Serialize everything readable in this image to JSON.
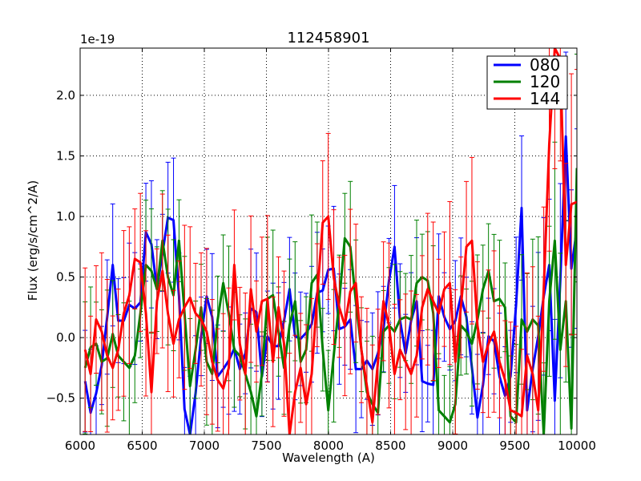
{
  "chart_data": {
    "type": "line",
    "title": "112458901",
    "xlabel": "Wavelength (A)",
    "ylabel": "Flux (erg/s/cm^2/A)",
    "offset_text": "1e-19",
    "xlim": [
      6000,
      10000
    ],
    "ylim": [
      -0.8,
      2.39
    ],
    "xticks": [
      6000,
      6500,
      7000,
      7500,
      8000,
      8500,
      9000,
      9500,
      10000
    ],
    "xtick_labels": [
      "6000",
      "6500",
      "7000",
      "7500",
      "8000",
      "8500",
      "9000",
      "9500",
      "10000"
    ],
    "yticks": [
      -0.5,
      0.0,
      0.5,
      1.0,
      1.5,
      2.0
    ],
    "ytick_labels": [
      "−0.5",
      "0.0",
      "0.5",
      "1.0",
      "1.5",
      "2.0"
    ],
    "grid": true,
    "legend_placement": "top-right",
    "x_range": [
      6040,
      10000
    ],
    "series": [
      {
        "name": "080",
        "color": "#0000ff",
        "yerr": 0.42,
        "values": [
          -0.36,
          -0.62,
          -0.46,
          -0.23,
          0.17,
          0.6,
          0.14,
          0.14,
          0.27,
          0.24,
          0.29,
          0.87,
          0.77,
          0.4,
          0.7,
          0.99,
          0.97,
          0.34,
          -0.59,
          -0.82,
          -0.46,
          0.01,
          0.34,
          0.17,
          -0.32,
          -0.26,
          -0.19,
          -0.09,
          -0.26,
          -0.13,
          0.24,
          0.21,
          -0.32,
          0.01,
          -0.07,
          -0.07,
          0.14,
          0.4,
          0.01,
          -0.01,
          0.04,
          0.11,
          0.37,
          0.39,
          0.56,
          0.57,
          0.07,
          0.09,
          0.15,
          -0.26,
          -0.26,
          -0.19,
          -0.26,
          -0.13,
          0.07,
          0.47,
          0.75,
          0.14,
          -0.13,
          0.14,
          0.3,
          -0.36,
          -0.38,
          -0.39,
          0.34,
          0.17,
          0.07,
          0.14,
          0.34,
          0.17,
          -0.25,
          -0.66,
          -0.39,
          0.01,
          -0.03,
          -0.32,
          -0.48,
          -0.32,
          0.27,
          1.07,
          -0.6,
          -0.26,
          0.01,
          0.34,
          0.6,
          -0.52,
          0.47,
          1.66,
          0.57,
          0.9
        ]
      },
      {
        "name": "120",
        "color": "#008000",
        "yerr": 0.45,
        "values": [
          -0.25,
          -0.08,
          -0.05,
          -0.2,
          -0.17,
          0.03,
          -0.15,
          -0.2,
          -0.25,
          -0.15,
          0.2,
          0.6,
          0.55,
          0.4,
          0.8,
          0.5,
          0.35,
          0.8,
          0.2,
          -0.4,
          -0.1,
          0.25,
          -0.2,
          -0.3,
          0.15,
          0.45,
          0.2,
          -0.1,
          -0.15,
          -0.3,
          -0.45,
          -0.65,
          -0.3,
          0.32,
          0.35,
          0.05,
          -0.25,
          0.1,
          0.3,
          -0.2,
          -0.1,
          0.45,
          0.52,
          -0.1,
          -0.6,
          -0.15,
          0.3,
          0.82,
          0.75,
          0.3,
          -0.1,
          -0.45,
          -0.55,
          -0.62,
          0.05,
          0.1,
          0.05,
          0.15,
          0.17,
          0.15,
          0.45,
          0.5,
          0.47,
          0.2,
          -0.6,
          -0.65,
          -0.7,
          -0.55,
          0.1,
          0.05,
          -0.05,
          0.15,
          0.4,
          0.55,
          0.3,
          0.32,
          0.25,
          -0.65,
          -0.7,
          0.15,
          0.05,
          0.15,
          0.1,
          -0.8,
          0.3,
          0.8,
          -0.1,
          0.3,
          -0.75,
          1.4
        ]
      },
      {
        "name": "144",
        "color": "#ff0000",
        "yerr": 0.55,
        "values": [
          -0.1,
          -0.3,
          0.15,
          0.05,
          -0.15,
          -0.25,
          -0.1,
          0.2,
          0.35,
          0.65,
          0.62,
          0.2,
          -0.45,
          0.3,
          0.55,
          0.2,
          -0.05,
          0.15,
          0.25,
          0.33,
          0.2,
          0.15,
          0.05,
          -0.2,
          -0.35,
          -0.42,
          -0.25,
          0.6,
          -0.05,
          -0.3,
          0.4,
          0.05,
          0.3,
          0.32,
          -0.2,
          0.25,
          -0.05,
          -0.8,
          -0.45,
          -0.25,
          -0.55,
          -0.3,
          0.35,
          0.95,
          1.0,
          0.5,
          0.25,
          0.1,
          0.38,
          0.45,
          -0.1,
          -0.4,
          -0.7,
          -0.2,
          0.3,
          0.1,
          -0.3,
          -0.1,
          -0.2,
          -0.3,
          -0.15,
          0.25,
          0.4,
          0.3,
          0.2,
          0.4,
          0.45,
          -0.2,
          0.25,
          0.75,
          0.8,
          0.1,
          -0.2,
          -0.05,
          0.05,
          -0.2,
          -0.35,
          -0.6,
          -0.62,
          -0.65,
          -0.15,
          -0.3,
          -0.6,
          0.4,
          1.6,
          2.4,
          2.3,
          0.6,
          1.1,
          1.12
        ]
      }
    ]
  }
}
